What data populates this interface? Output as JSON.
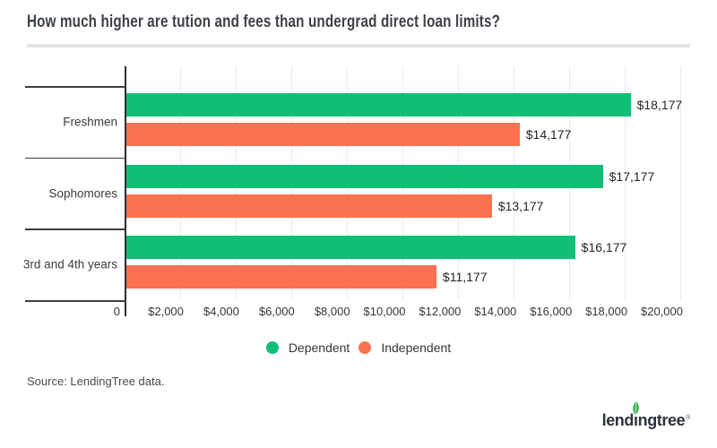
{
  "title": "How much higher are tution and fees than undergrad direct loan limits?",
  "source": "Source: LendingTree data.",
  "logo": {
    "text": "lendingtree",
    "registered_mark": "®"
  },
  "colors": {
    "dependent_green": "#10be76",
    "independent_orange": "#fc7150",
    "axis": "#2d2d2d",
    "gridline": "#ebebeb",
    "divider": "#e4e4e4",
    "leaf_green": "#2fae4b",
    "logo_text": "#2d333e"
  },
  "legend": {
    "items": [
      {
        "label": "Dependent",
        "color": "#10be76"
      },
      {
        "label": "Independent",
        "color": "#fc7150"
      }
    ]
  },
  "chart_data": {
    "type": "bar",
    "orientation": "horizontal",
    "title": "How much higher are tution and fees than undergrad direct loan limits?",
    "categories": [
      "Freshmen",
      "Sophomores",
      "3rd and 4th years"
    ],
    "series": [
      {
        "name": "Dependent",
        "color": "#10be76",
        "values": [
          18177,
          17177,
          16177
        ],
        "labels": [
          "$18,177",
          "$17,177",
          "$16,177"
        ]
      },
      {
        "name": "Independent",
        "color": "#fc7150",
        "values": [
          14177,
          13177,
          11177
        ],
        "labels": [
          "$14,177",
          "$13,177",
          "$11,177"
        ]
      }
    ],
    "xlabel": "",
    "ylabel": "",
    "xlim": [
      0,
      20000
    ],
    "x_ticks": [
      0,
      2000,
      4000,
      6000,
      8000,
      10000,
      12000,
      14000,
      16000,
      18000,
      20000
    ],
    "x_tick_labels": [
      "0",
      "$2,000",
      "$4,000",
      "$6,000",
      "$8,000",
      "$10,000",
      "$12,000",
      "$14,000",
      "$16,000",
      "$18,000",
      "$20,000"
    ],
    "grid": true,
    "legend_position": "bottom"
  }
}
